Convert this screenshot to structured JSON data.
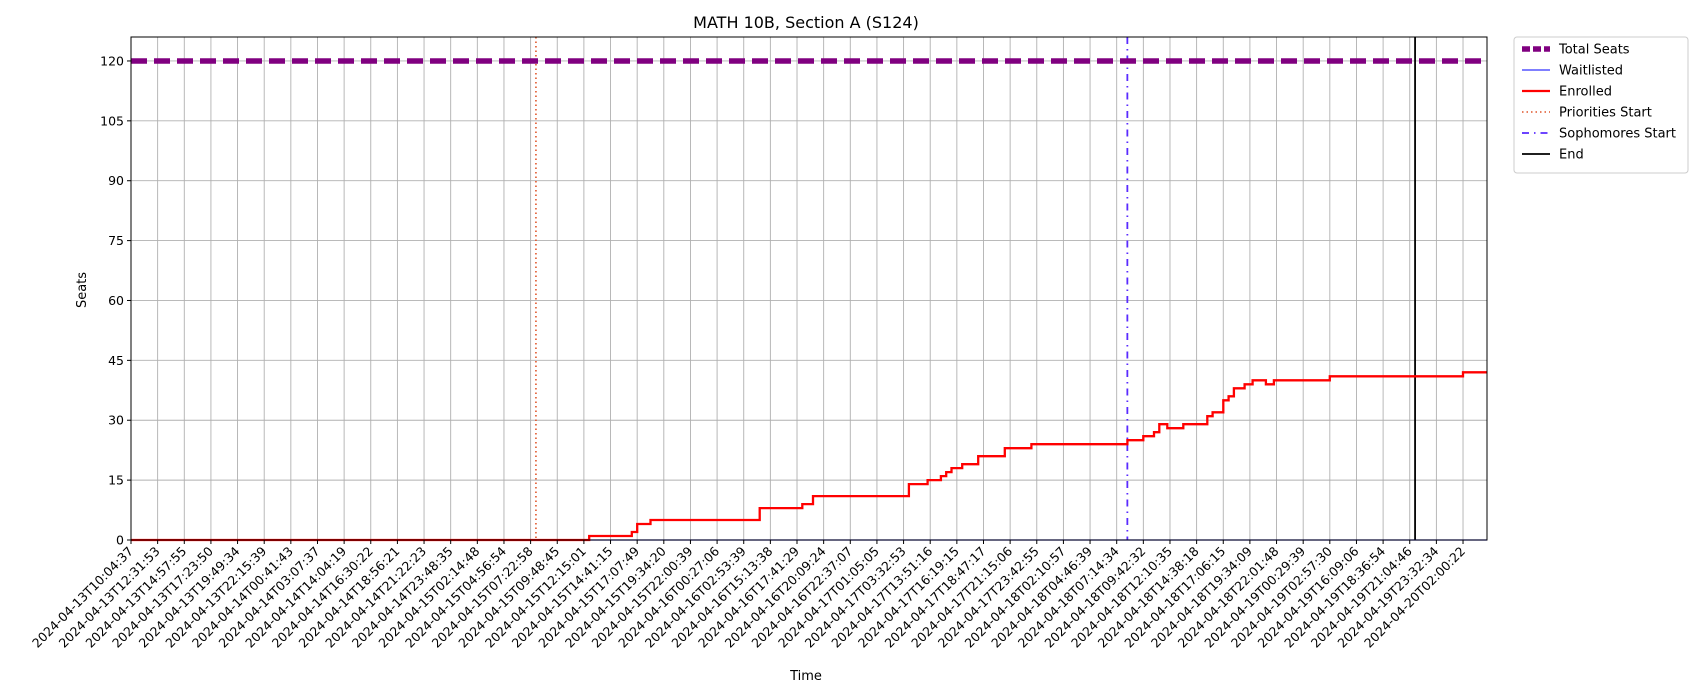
{
  "chart_data": {
    "type": "line",
    "title": "MATH 10B, Section A (S124)",
    "xlabel": "Time",
    "ylabel": "Seats",
    "ylim": [
      0,
      126
    ],
    "yticks": [
      0,
      15,
      30,
      45,
      60,
      75,
      90,
      105,
      120
    ],
    "grid": true,
    "legend_position": "outside-top-right",
    "x_categories": [
      "2024-04-13T10:04:37",
      "2024-04-13T12:31:53",
      "2024-04-13T14:57:55",
      "2024-04-13T17:23:50",
      "2024-04-13T19:49:34",
      "2024-04-13T22:15:39",
      "2024-04-14T00:41:43",
      "2024-04-14T03:07:37",
      "2024-04-14T14:04:19",
      "2024-04-14T16:30:22",
      "2024-04-14T18:56:21",
      "2024-04-14T21:22:23",
      "2024-04-14T23:48:35",
      "2024-04-15T02:14:48",
      "2024-04-15T04:56:54",
      "2024-04-15T07:22:58",
      "2024-04-15T09:48:45",
      "2024-04-15T12:15:01",
      "2024-04-15T14:41:15",
      "2024-04-15T17:07:49",
      "2024-04-15T19:34:20",
      "2024-04-15T22:00:39",
      "2024-04-16T00:27:06",
      "2024-04-16T02:53:39",
      "2024-04-16T15:13:38",
      "2024-04-16T17:41:29",
      "2024-04-16T20:09:24",
      "2024-04-16T22:37:07",
      "2024-04-17T01:05:05",
      "2024-04-17T03:32:53",
      "2024-04-17T13:51:16",
      "2024-04-17T16:19:15",
      "2024-04-17T18:47:17",
      "2024-04-17T21:15:06",
      "2024-04-17T23:42:55",
      "2024-04-18T02:10:57",
      "2024-04-18T04:46:39",
      "2024-04-18T07:14:34",
      "2024-04-18T09:42:32",
      "2024-04-18T12:10:35",
      "2024-04-18T14:38:18",
      "2024-04-18T17:06:15",
      "2024-04-18T19:34:09",
      "2024-04-18T22:01:48",
      "2024-04-19T00:29:39",
      "2024-04-19T02:57:30",
      "2024-04-19T16:09:06",
      "2024-04-19T18:36:54",
      "2024-04-19T21:04:46",
      "2024-04-19T23:32:34",
      "2024-04-20T02:00:22"
    ],
    "x_range": [
      0,
      50.9
    ],
    "series": [
      {
        "name": "Total Seats",
        "color": "#800080",
        "style": "dashed-thick",
        "points": [
          [
            0,
            120
          ],
          [
            50.9,
            120
          ]
        ]
      },
      {
        "name": "Waitlisted",
        "color": "#3333ff",
        "style": "solid-thin",
        "points": [
          [
            0,
            0
          ],
          [
            50.9,
            0
          ]
        ]
      },
      {
        "name": "Enrolled",
        "color": "#ff0000",
        "style": "step",
        "points": [
          [
            0,
            0
          ],
          [
            17.2,
            0
          ],
          [
            17.2,
            1
          ],
          [
            18.8,
            1
          ],
          [
            18.8,
            2
          ],
          [
            19.0,
            2
          ],
          [
            19.0,
            4
          ],
          [
            19.5,
            4
          ],
          [
            19.5,
            5
          ],
          [
            23.6,
            5
          ],
          [
            23.6,
            8
          ],
          [
            25.2,
            8
          ],
          [
            25.2,
            9
          ],
          [
            25.6,
            9
          ],
          [
            25.6,
            11
          ],
          [
            29.2,
            11
          ],
          [
            29.2,
            14
          ],
          [
            29.9,
            14
          ],
          [
            29.9,
            15
          ],
          [
            30.4,
            15
          ],
          [
            30.4,
            16
          ],
          [
            30.6,
            16
          ],
          [
            30.6,
            17
          ],
          [
            30.8,
            17
          ],
          [
            30.8,
            18
          ],
          [
            31.2,
            18
          ],
          [
            31.2,
            19
          ],
          [
            31.8,
            19
          ],
          [
            31.8,
            21
          ],
          [
            32.8,
            21
          ],
          [
            32.8,
            23
          ],
          [
            33.8,
            23
          ],
          [
            33.8,
            24
          ],
          [
            37.4,
            24
          ],
          [
            37.4,
            25
          ],
          [
            38.0,
            25
          ],
          [
            38.0,
            26
          ],
          [
            38.4,
            26
          ],
          [
            38.4,
            27
          ],
          [
            38.6,
            27
          ],
          [
            38.6,
            29
          ],
          [
            38.9,
            29
          ],
          [
            38.9,
            28
          ],
          [
            39.5,
            28
          ],
          [
            39.5,
            29
          ],
          [
            40.4,
            29
          ],
          [
            40.4,
            31
          ],
          [
            40.6,
            31
          ],
          [
            40.6,
            32
          ],
          [
            41.0,
            32
          ],
          [
            41.0,
            35
          ],
          [
            41.2,
            35
          ],
          [
            41.2,
            36
          ],
          [
            41.4,
            36
          ],
          [
            41.4,
            38
          ],
          [
            41.8,
            38
          ],
          [
            41.8,
            39
          ],
          [
            42.1,
            39
          ],
          [
            42.1,
            40
          ],
          [
            42.6,
            40
          ],
          [
            42.6,
            39
          ],
          [
            42.9,
            39
          ],
          [
            42.9,
            40
          ],
          [
            45.0,
            40
          ],
          [
            45.0,
            41
          ],
          [
            50.0,
            41
          ],
          [
            50.0,
            42
          ],
          [
            50.9,
            42
          ]
        ]
      }
    ],
    "markers": [
      {
        "name": "Priorities Start",
        "x": 15.2,
        "color": "#e0552a",
        "style": "dotted"
      },
      {
        "name": "Sophomores Start",
        "x": 37.4,
        "color": "#5a2bff",
        "style": "dashdot"
      },
      {
        "name": "End",
        "x": 48.2,
        "color": "#000000",
        "style": "solid"
      }
    ],
    "legend": [
      "Total Seats",
      "Waitlisted",
      "Enrolled",
      "Priorities Start",
      "Sophomores Start",
      "End"
    ]
  }
}
